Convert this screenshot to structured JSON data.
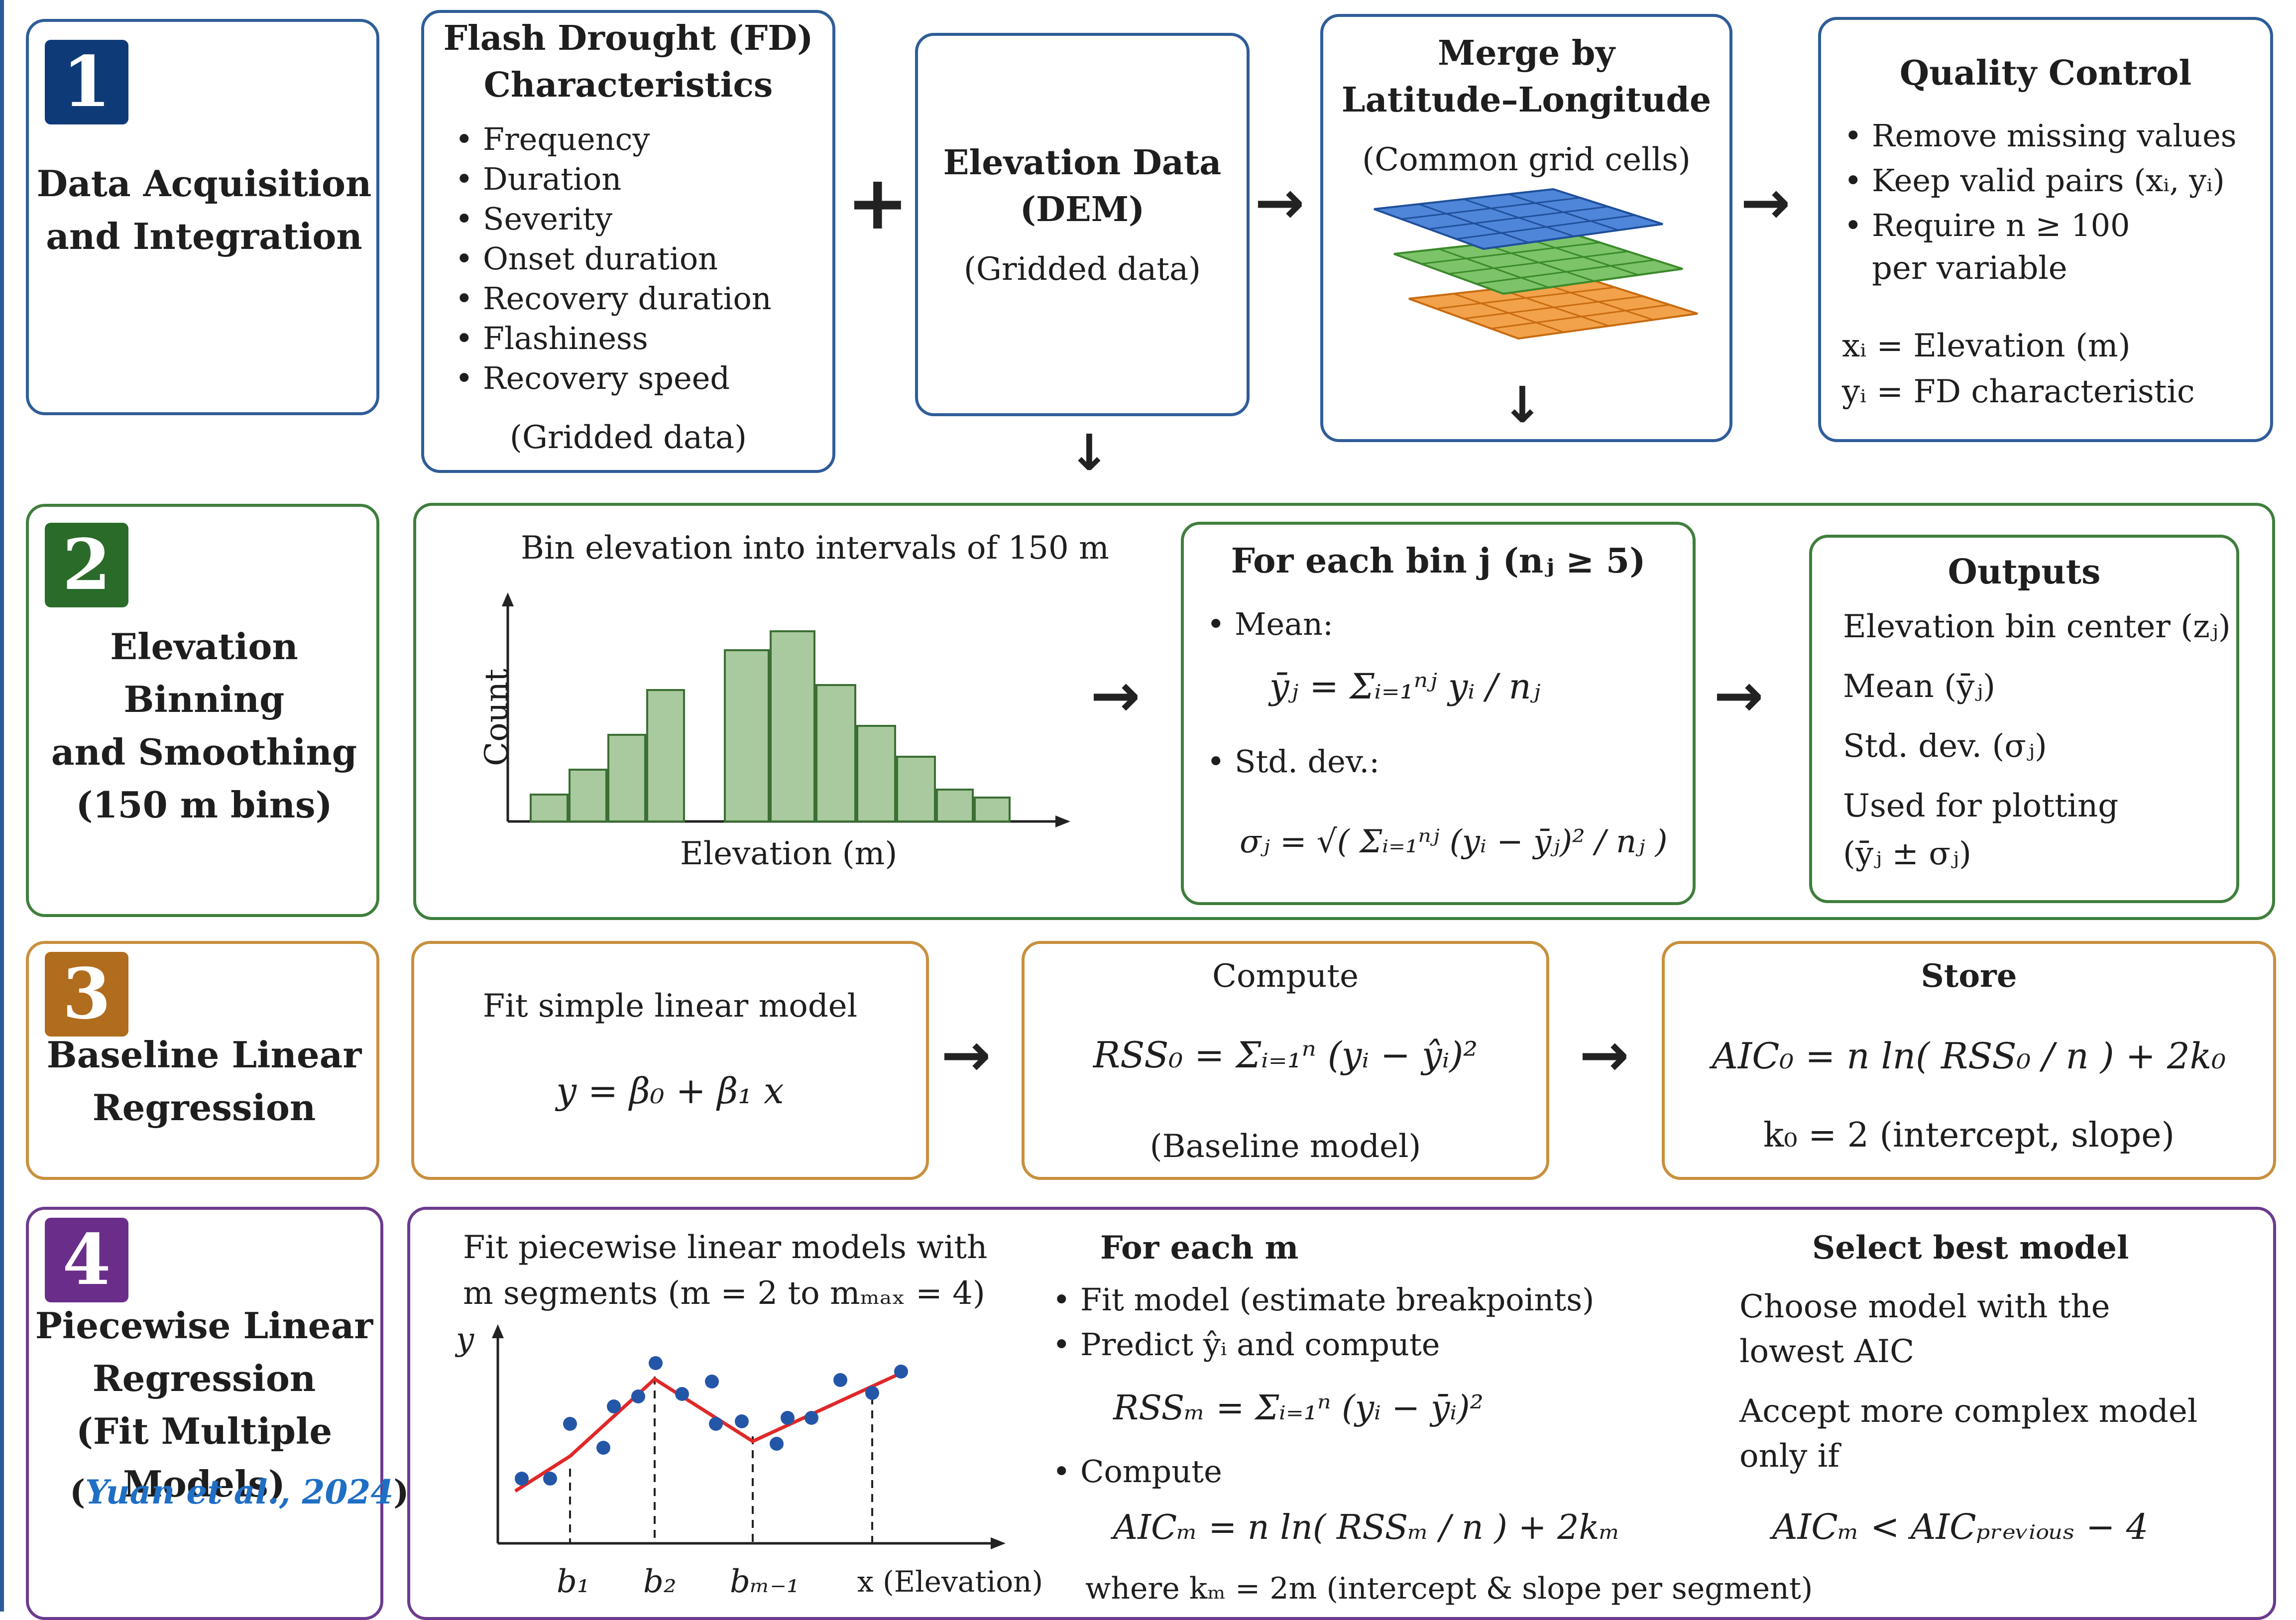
{
  "colors": {
    "stage1": "#0f3a78",
    "stage2": "#2a6b2a",
    "stage3": "#b06d1e",
    "stage4": "#6a2e8a",
    "blue_border": "#2f5d98",
    "green_border": "#3f7f3c",
    "orange_border": "#c8903e",
    "purple_border": "#6c3b8e",
    "bar_fill": "#a9c99e",
    "point": "#2456a8",
    "fit_line": "#e02828"
  },
  "stage1": {
    "number": "1",
    "title_l1": "Data Acquisition",
    "title_l2": "and Integration",
    "fd": {
      "title_l1": "Flash Drought (FD)",
      "title_l2": "Characteristics",
      "items": [
        "Frequency",
        "Duration",
        "Severity",
        "Onset duration",
        "Recovery duration",
        "Flashiness",
        "Recovery speed"
      ],
      "footer": "(Gridded data)"
    },
    "plus": "+",
    "dem": {
      "title_l1": "Elevation Data",
      "title_l2": "(DEM)",
      "sub": "(Gridded data)"
    },
    "merge": {
      "title_l1": "Merge by",
      "title_l2": "Latitude–Longitude",
      "sub": "(Common grid cells)"
    },
    "qc": {
      "title": "Quality Control",
      "items": [
        "Remove missing values",
        "Keep valid pairs (xᵢ, yᵢ)",
        "Require n ≥ 100"
      ],
      "item3_cont": "per variable",
      "def_x": "xᵢ = Elevation (m)",
      "def_y": "yᵢ = FD characteristic"
    }
  },
  "stage2": {
    "number": "2",
    "title_l1": "Elevation Binning",
    "title_l2": "and Smoothing",
    "title_l3": "(150 m bins)",
    "hist": {
      "caption": "Bin elevation into intervals of 150 m",
      "ylabel": "Count",
      "xlabel": "Elevation (m)"
    },
    "foreach": {
      "title": "For each bin j (nⱼ ≥ 5)",
      "mean_label": "Mean:",
      "mean_formula": "ȳⱼ = Σᵢ₌₁ⁿʲ yᵢ / nⱼ",
      "std_label": "Std. dev.:",
      "std_formula": "σⱼ = √( Σᵢ₌₁ⁿʲ (yᵢ − ȳⱼ)² / nⱼ )"
    },
    "outputs": {
      "title": "Outputs",
      "l1": "Elevation bin center (zⱼ)",
      "l2": "Mean (ȳⱼ)",
      "l3": "Std. dev. (σⱼ)",
      "l4": "Used for plotting",
      "l5": "(ȳⱼ ± σⱼ)"
    }
  },
  "stage3": {
    "number": "3",
    "title_l1": "Baseline Linear",
    "title_l2": "Regression",
    "fit": {
      "caption": "Fit simple linear model",
      "formula": "y = β₀ + β₁ x"
    },
    "compute": {
      "title": "Compute",
      "formula": "RSS₀ = Σᵢ₌₁ⁿ (yᵢ − ŷᵢ)²",
      "sub": "(Baseline model)"
    },
    "store": {
      "title": "Store",
      "formula": "AIC₀ = n ln( RSS₀ / n ) + 2k₀",
      "k": "k₀ = 2 (intercept, slope)"
    }
  },
  "stage4": {
    "number": "4",
    "title_l1": "Piecewise Linear",
    "title_l2": "Regression",
    "title_l3": "(Fit Multiple Models)",
    "cite_open": "(",
    "cite_text": "Yuan et al., 2024",
    "cite_close": ")",
    "plot": {
      "caption_l1": "Fit piecewise linear models with",
      "caption_l2": "m segments (m = 2 to mₘₐₓ = 4)",
      "ylabel": "y",
      "xlabel": "x (Elevation)",
      "ticks": [
        "b₁",
        "b₂",
        "bₘ₋₁"
      ]
    },
    "foreach": {
      "title": "For each m",
      "b1": "Fit model (estimate breakpoints)",
      "b2": "Predict ŷᵢ  and compute",
      "rss": "RSSₘ = Σᵢ₌₁ⁿ (yᵢ − ȳᵢ)²",
      "b3": "Compute",
      "aic": "AICₘ = n ln( RSSₘ / n ) + 2kₘ",
      "where": "where kₘ = 2m (intercept & slope per segment)"
    },
    "select": {
      "title": "Select best model",
      "l1": "Choose model with the",
      "l2": "lowest AIC",
      "l3": "Accept more complex model",
      "l4": "only if",
      "rule": "AICₘ < AICₚᵣₑᵥᵢₒᵤₛ − 4"
    }
  }
}
